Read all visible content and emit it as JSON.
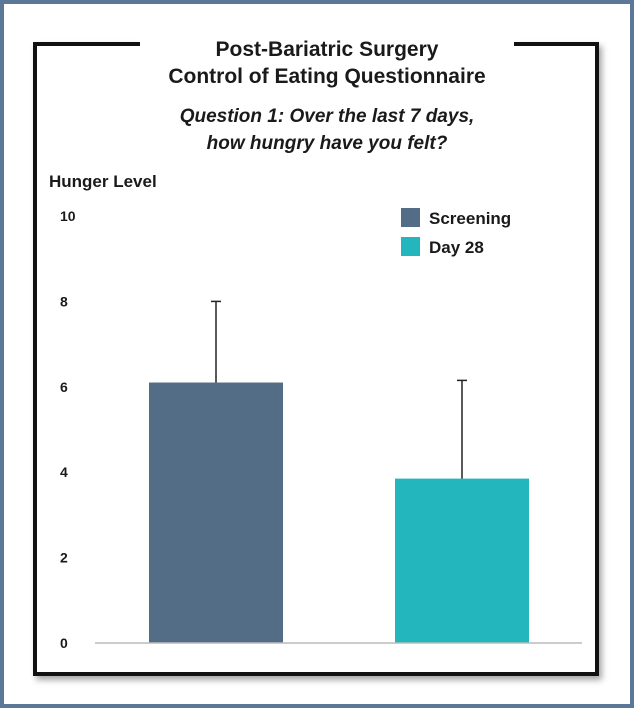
{
  "chart_data": {
    "type": "bar",
    "title_line1": "Post-Bariatric Surgery",
    "title_line2": "Control of Eating Questionnaire",
    "subtitle_line1": "Question 1: Over the last 7 days,",
    "subtitle_line2": "how hungry have you felt?",
    "ylabel": "Hunger Level",
    "ylim": [
      0,
      10
    ],
    "yticks": [
      "0",
      "2",
      "4",
      "6",
      "8",
      "10"
    ],
    "grid": false,
    "legend_position": "top-right",
    "series": [
      {
        "name": "Screening",
        "value": 6.1,
        "error_upper": 8.0,
        "color": "#536d87"
      },
      {
        "name": "Day 28",
        "value": 3.85,
        "error_upper": 6.15,
        "color": "#23b6bc"
      }
    ],
    "colors": {
      "axis": "#bbbbbb",
      "error_bar": "#222222",
      "frame": "#5b7898"
    }
  }
}
